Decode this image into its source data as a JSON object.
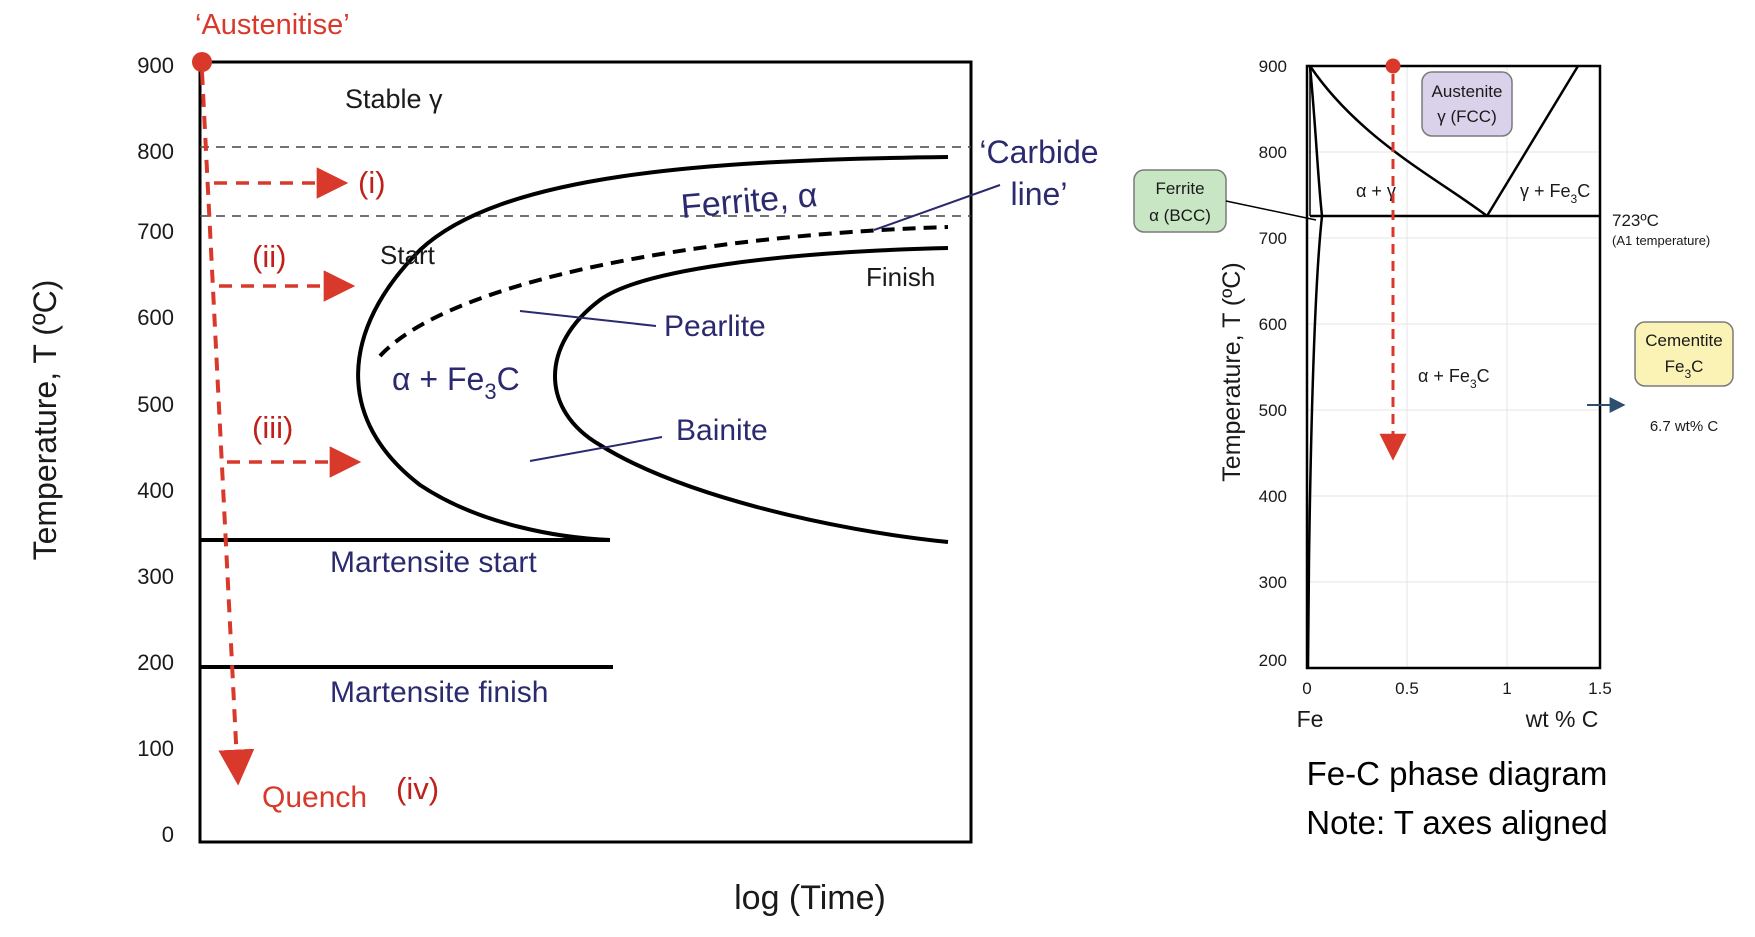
{
  "ttt": {
    "austenitise_label": "‘Austenitise’",
    "y_axis_label": "Temperature, T  (ºC)",
    "x_axis_label": "log (Time)",
    "y_ticks": [
      "900",
      "800",
      "700",
      "600",
      "500",
      "400",
      "300",
      "200",
      "100",
      "0"
    ],
    "stable_gamma": "Stable γ",
    "ferrite": "Ferrite, α",
    "carbide_line_1": "‘Carbide",
    "carbide_line_2": "line’",
    "start": "Start",
    "finish": "Finish",
    "pearlite": "Pearlite",
    "bainite": "Bainite",
    "alpha_fe3c": {
      "a": "α + Fe",
      "sub": "3",
      "c": "C"
    },
    "martensite_start": "Martensite start",
    "martensite_finish": "Martensite finish",
    "quench": "Quench",
    "paths": [
      "(i)",
      "(ii)",
      "(iii)",
      "(iv)"
    ]
  },
  "phase": {
    "y_ticks": [
      "900",
      "800",
      "700",
      "600",
      "500",
      "400",
      "300",
      "200"
    ],
    "x_ticks": [
      "0",
      "0.5",
      "1",
      "1.5"
    ],
    "y_axis_label": "Temperature, T  (ºC)",
    "x_left_label": "Fe",
    "x_right_label": "wt % C",
    "austenite_1": "Austenite",
    "austenite_2": "γ  (FCC)",
    "ferrite_1": "Ferrite",
    "ferrite_2": "α (BCC)",
    "cementite_1": "Cementite",
    "cementite_2": {
      "a": "Fe",
      "sub": "3",
      "c": "C"
    },
    "cementite_wt": "6.7 wt% C",
    "alpha_gamma": "α + γ",
    "gamma_fe3c": {
      "a": "γ + Fe",
      "sub": "3",
      "c": "C"
    },
    "alpha_fe3c": {
      "a": "α + Fe",
      "sub": "3",
      "c": "C"
    },
    "a1_temp": "723ºC",
    "a1_label": "(A1 temperature)",
    "caption_1": "Fe-C phase diagram",
    "caption_2": "Note: T axes aligned"
  },
  "colors": {
    "curve": "#000000",
    "quench_path": "#d8392b",
    "label_navy": "#2b2a6e",
    "austenite_box": "#d9d2ea",
    "ferrite_box": "#c8e6c4",
    "cementite_box": "#fbf3b5",
    "pointer_arrow": "#2f4f6e"
  }
}
